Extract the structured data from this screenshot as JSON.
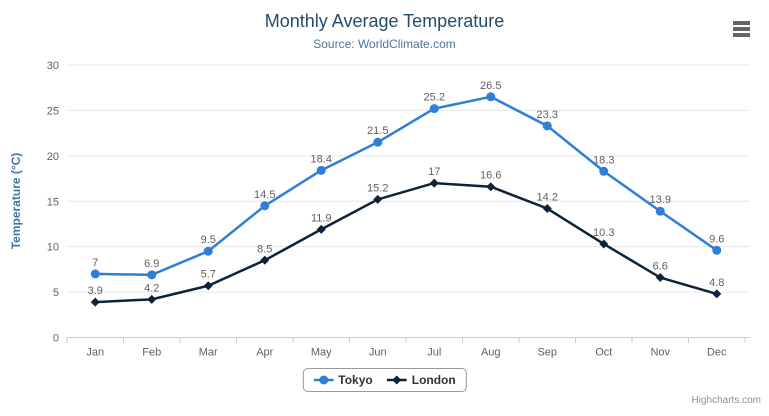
{
  "header": {
    "title": "Monthly Average Temperature",
    "subtitle": "Source: WorldClimate.com"
  },
  "toolbar": {
    "export_menu_icon": "hamburger-menu-icon"
  },
  "credits": {
    "label": "Highcharts.com"
  },
  "palette": {
    "title": "#274b6d",
    "subtitle": "#4d759e",
    "axis_title": "#4572a7",
    "axis_labels": "#606060",
    "data_labels": "#606060",
    "gridline": "#e6e6e6",
    "axis_line": "#c0d0e0",
    "legend_text": "#333333",
    "legend_border": "#999999",
    "credits": "#909090",
    "menu_icon": "#666666"
  },
  "chart_data": {
    "type": "line",
    "title": "Monthly Average Temperature",
    "subtitle": "Source: WorldClimate.com",
    "categories": [
      "Jan",
      "Feb",
      "Mar",
      "Apr",
      "May",
      "Jun",
      "Jul",
      "Aug",
      "Sep",
      "Oct",
      "Nov",
      "Dec"
    ],
    "series": [
      {
        "name": "Tokyo",
        "color": "#2f7ed8",
        "marker": "circle",
        "values": [
          7,
          6.9,
          9.5,
          14.5,
          18.4,
          21.5,
          25.2,
          26.5,
          23.3,
          18.3,
          13.9,
          9.6
        ]
      },
      {
        "name": "London",
        "color": "#0d233a",
        "marker": "diamond",
        "values": [
          3.9,
          4.2,
          5.7,
          8.5,
          11.9,
          15.2,
          17,
          16.6,
          14.2,
          10.3,
          6.6,
          4.8
        ]
      }
    ],
    "xlabel": "",
    "ylabel": "Temperature (°C)",
    "ylim": [
      0,
      30
    ],
    "ytick_interval": 5,
    "yticks": [
      0,
      5,
      10,
      15,
      20,
      25,
      30
    ],
    "grid": "horizontal",
    "data_labels": true,
    "legend_position": "bottom-center"
  }
}
